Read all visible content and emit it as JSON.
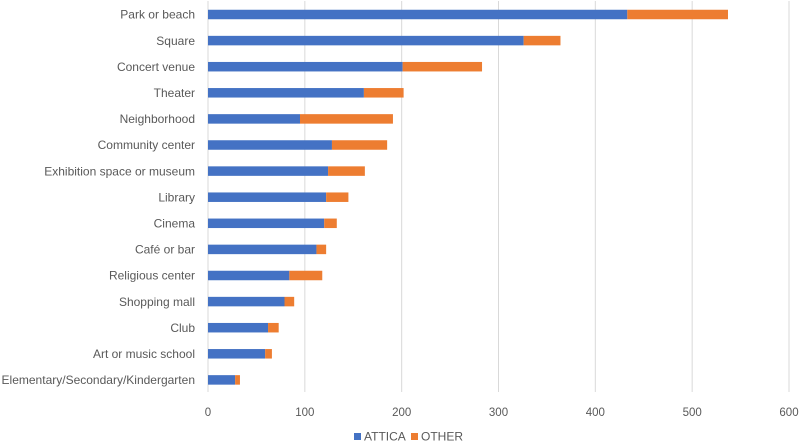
{
  "chart_data": {
    "type": "bar",
    "orientation": "horizontal",
    "stacked": true,
    "title": "",
    "xlabel": "",
    "ylabel": "",
    "xlim": [
      0,
      600
    ],
    "xticks": [
      0,
      100,
      200,
      300,
      400,
      500,
      600
    ],
    "grid": true,
    "legend_position": "bottom",
    "categories": [
      "Park or beach",
      "Square",
      "Concert venue",
      "Theater",
      "Neighborhood",
      "Community center",
      "Exhibition space or museum",
      "Library",
      "Cinema",
      "Café or bar",
      "Religious center",
      "Shopping mall",
      "Club",
      "Art or music school",
      "Elementary/Secondary/Kindergarten"
    ],
    "series": [
      {
        "name": "ATTICA",
        "color": "#4472c4",
        "values": [
          433,
          326,
          201,
          161,
          95,
          128,
          124,
          122,
          120,
          112,
          84,
          79,
          62,
          59,
          28
        ]
      },
      {
        "name": "OTHER",
        "color": "#ed7d31",
        "values": [
          104,
          38,
          82,
          41,
          96,
          57,
          38,
          23,
          13,
          10,
          34,
          10,
          11,
          7,
          5
        ]
      }
    ]
  }
}
